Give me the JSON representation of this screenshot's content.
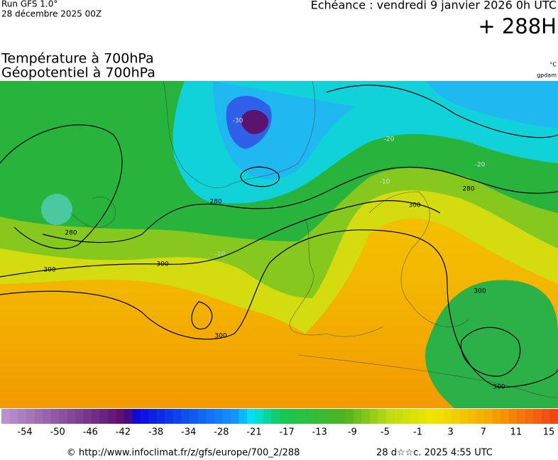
{
  "header": {
    "run": "Run GFS 1.0°",
    "run_date": "28 décembre 2025 00Z",
    "valid": "Echéance : vendredi 9 janvier 2026 0h UTC",
    "lead": "+ 288H"
  },
  "titles": {
    "line1": "Température à 700hPa",
    "line2": "Géopotentiel à 700hPa",
    "unit_temp": "°C",
    "unit_geo": "gpdam"
  },
  "map": {
    "contour_labels": [
      "300",
      "300",
      "300",
      "300",
      "300",
      "300",
      "280",
      "280",
      "280",
      "-10",
      "-10",
      "-20",
      "-20",
      "-30"
    ]
  },
  "colorbar": {
    "labels": [
      "-54",
      "-50",
      "-46",
      "-42",
      "-38",
      "-34",
      "-28",
      "-21",
      "-17",
      "-13",
      "-9",
      "-5",
      "-1",
      "3",
      "7",
      "11",
      "15"
    ]
  },
  "footer": {
    "source": "© http://www.infoclimat.fr/z/gfs/europe/700_2/288",
    "generated": "28 d☆☆c. 2025  4:55 UTC"
  }
}
